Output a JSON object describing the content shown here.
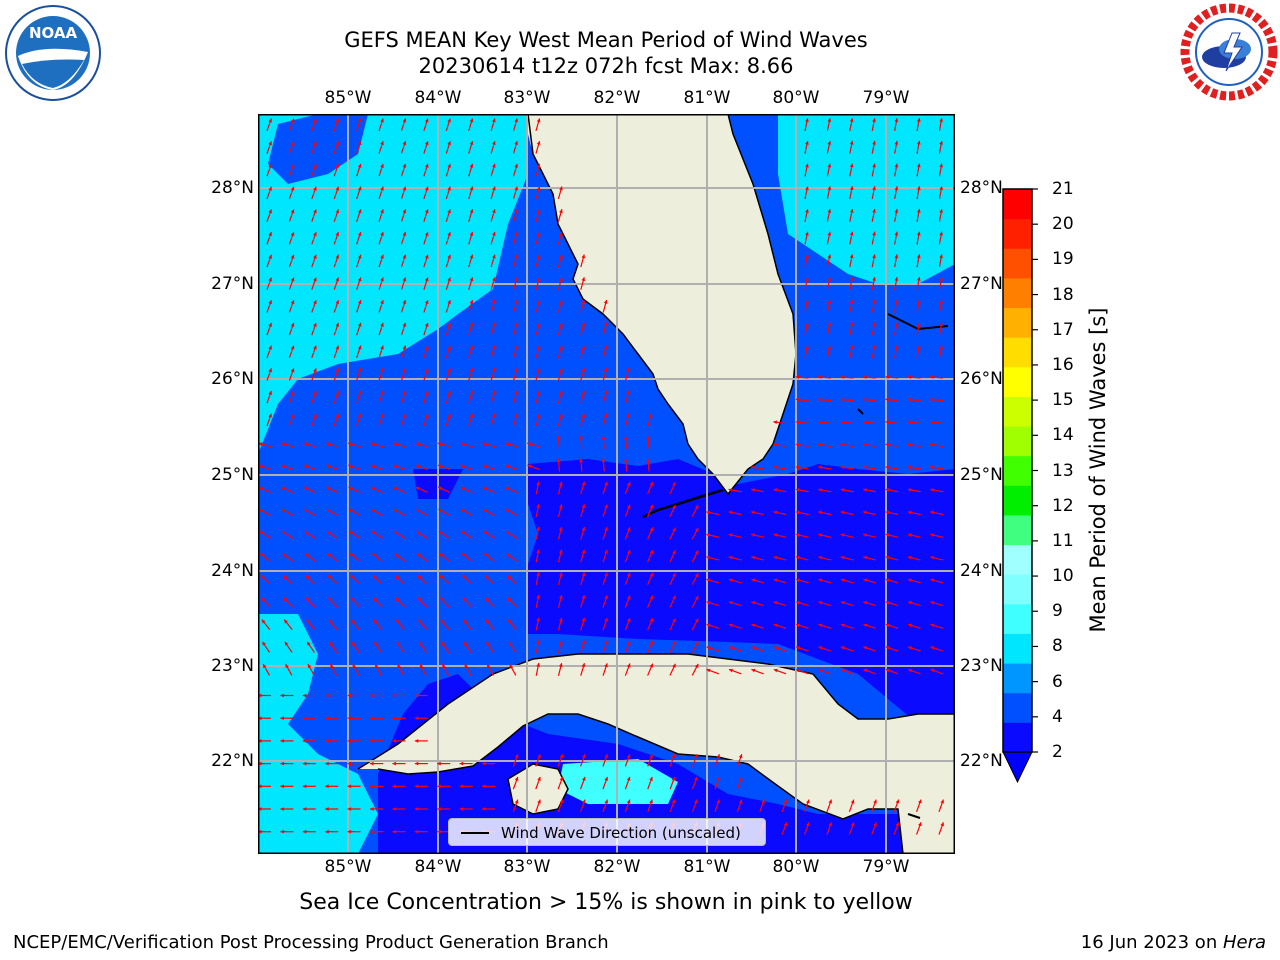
{
  "title": {
    "line1": "GEFS MEAN Key West Mean Period of Wind Waves",
    "line2": "20230614 t12z 072h fcst   Max: 8.66"
  },
  "map": {
    "lon_ticks": [
      "85°W",
      "84°W",
      "83°W",
      "82°W",
      "81°W",
      "80°W",
      "79°W"
    ],
    "lat_ticks": [
      "28°N",
      "27°N",
      "26°N",
      "25°N",
      "24°N",
      "23°N",
      "22°N"
    ],
    "land_color": "#eeeedd",
    "arrow_color": "#ff0000",
    "background_color": "#ffffff"
  },
  "legend": {
    "label": "Wind Wave Direction (unscaled)"
  },
  "colorbar": {
    "label": "Mean Period of Wind Waves [s]",
    "ticks": [
      "2",
      "4",
      "6",
      "8",
      "9",
      "10",
      "11",
      "12",
      "13",
      "14",
      "15",
      "16",
      "17",
      "18",
      "19",
      "20",
      "21"
    ],
    "colors": [
      "#0a0aff",
      "#0050ff",
      "#0096ff",
      "#00e6ff",
      "#40ffff",
      "#7fffff",
      "#a0ffff",
      "#40ff80",
      "#00ee00",
      "#40ff00",
      "#a0ff00",
      "#ccff00",
      "#ffff00",
      "#ffdd00",
      "#ffb000",
      "#ff8000",
      "#ff5000",
      "#ff2000",
      "#ff0000"
    ],
    "extend_color": "#0000ff"
  },
  "note": "Sea Ice Concentration > 15% is shown in pink to yellow",
  "credit_left": "NCEP/EMC/Verification Post Processing Product Generation Branch",
  "credit_right_date": "16 Jun 2023 on ",
  "credit_right_host": "Hera",
  "logos": {
    "left": "NOAA",
    "left_ring": "NATIONAL OCEANIC AND ATMOSPHERIC ADMINISTRATION · U.S. DEPARTMENT OF COMMERCE",
    "right_ring": "NATIONAL WEATHER SERVICE"
  }
}
